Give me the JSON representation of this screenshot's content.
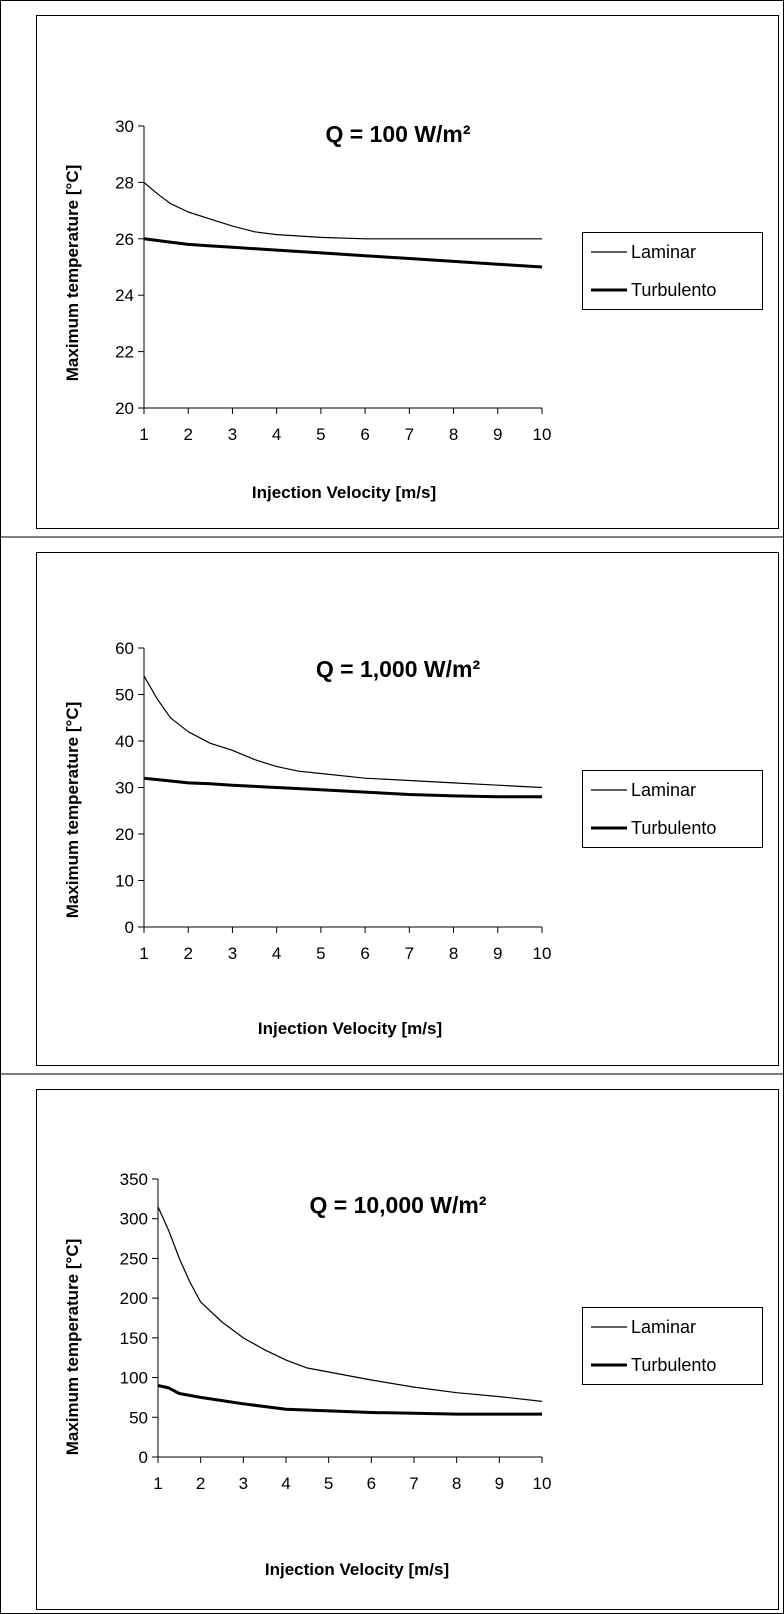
{
  "chart_data": [
    {
      "type": "line",
      "title": "Q = 100 W/m²",
      "xlabel": "Injection Velocity [m/s]",
      "ylabel": "Maximum temperature [°C]",
      "xlim": [
        1,
        10
      ],
      "ylim": [
        20,
        30
      ],
      "xticks": [
        "1",
        "2",
        "3",
        "4",
        "5",
        "6",
        "7",
        "8",
        "9",
        "10"
      ],
      "yticks": [
        "20",
        "22",
        "24",
        "26",
        "28",
        "30"
      ],
      "grid": false,
      "legend": "right",
      "series": [
        {
          "name": "Laminar",
          "x": [
            1,
            1.3,
            1.6,
            2,
            2.5,
            3,
            3.5,
            4,
            4.5,
            5,
            6,
            7,
            8,
            9,
            10
          ],
          "y": [
            28.0,
            27.6,
            27.25,
            26.95,
            26.7,
            26.45,
            26.25,
            26.15,
            26.1,
            26.05,
            26.0,
            26.0,
            26.0,
            26.0,
            26.0
          ]
        },
        {
          "name": "Turbulento",
          "x": [
            1,
            1.5,
            2,
            2.5,
            3,
            4,
            5,
            6,
            7,
            8,
            9,
            10
          ],
          "y": [
            26.0,
            25.9,
            25.8,
            25.75,
            25.7,
            25.6,
            25.5,
            25.4,
            25.3,
            25.2,
            25.1,
            25.0
          ]
        }
      ]
    },
    {
      "type": "line",
      "title": "Q = 1,000 W/m²",
      "xlabel": "Injection Velocity [m/s]",
      "ylabel": "Maximum temperature [°C]",
      "xlim": [
        1,
        10
      ],
      "ylim": [
        0,
        60
      ],
      "xticks": [
        "1",
        "2",
        "3",
        "4",
        "5",
        "6",
        "7",
        "8",
        "9",
        "10"
      ],
      "yticks": [
        "0",
        "10",
        "20",
        "30",
        "40",
        "50",
        "60"
      ],
      "grid": false,
      "legend": "right",
      "series": [
        {
          "name": "Laminar",
          "x": [
            1,
            1.3,
            1.6,
            2,
            2.5,
            3,
            3.5,
            4,
            4.5,
            5,
            6,
            7,
            8,
            9,
            10
          ],
          "y": [
            54.0,
            49.0,
            45.0,
            42.0,
            39.5,
            38.0,
            36.0,
            34.5,
            33.5,
            33.0,
            32.0,
            31.5,
            31.0,
            30.5,
            30.0
          ]
        },
        {
          "name": "Turbulento",
          "x": [
            1,
            1.5,
            2,
            2.5,
            3,
            4,
            5,
            6,
            7,
            8,
            9,
            10
          ],
          "y": [
            32.0,
            31.5,
            31.0,
            30.8,
            30.5,
            30.0,
            29.5,
            29.0,
            28.5,
            28.2,
            28.0,
            28.0
          ]
        }
      ]
    },
    {
      "type": "line",
      "title": "Q = 10,000 W/m²",
      "xlabel": "Injection Velocity [m/s]",
      "ylabel": "Maximum temperature [°C]",
      "xlim": [
        1,
        10
      ],
      "ylim": [
        0,
        350
      ],
      "xticks": [
        "1",
        "2",
        "3",
        "4",
        "5",
        "6",
        "7",
        "8",
        "9",
        "10"
      ],
      "yticks": [
        "0",
        "50",
        "100",
        "150",
        "200",
        "250",
        "300",
        "350"
      ],
      "grid": false,
      "legend": "right",
      "series": [
        {
          "name": "Laminar",
          "x": [
            1,
            1.25,
            1.5,
            1.75,
            2,
            2.5,
            3,
            3.5,
            4,
            4.5,
            5,
            6,
            7,
            8,
            9,
            10
          ],
          "y": [
            315,
            285,
            250,
            220,
            195,
            170,
            150,
            135,
            122,
            112,
            107,
            97,
            88,
            81,
            76,
            70
          ]
        },
        {
          "name": "Turbulento",
          "x": [
            1,
            1.25,
            1.5,
            2,
            2.5,
            3,
            4,
            5,
            6,
            7,
            8,
            9,
            10
          ],
          "y": [
            90,
            87,
            80,
            75,
            71,
            67,
            60,
            58,
            56,
            55,
            54,
            54,
            54
          ]
        }
      ]
    }
  ]
}
